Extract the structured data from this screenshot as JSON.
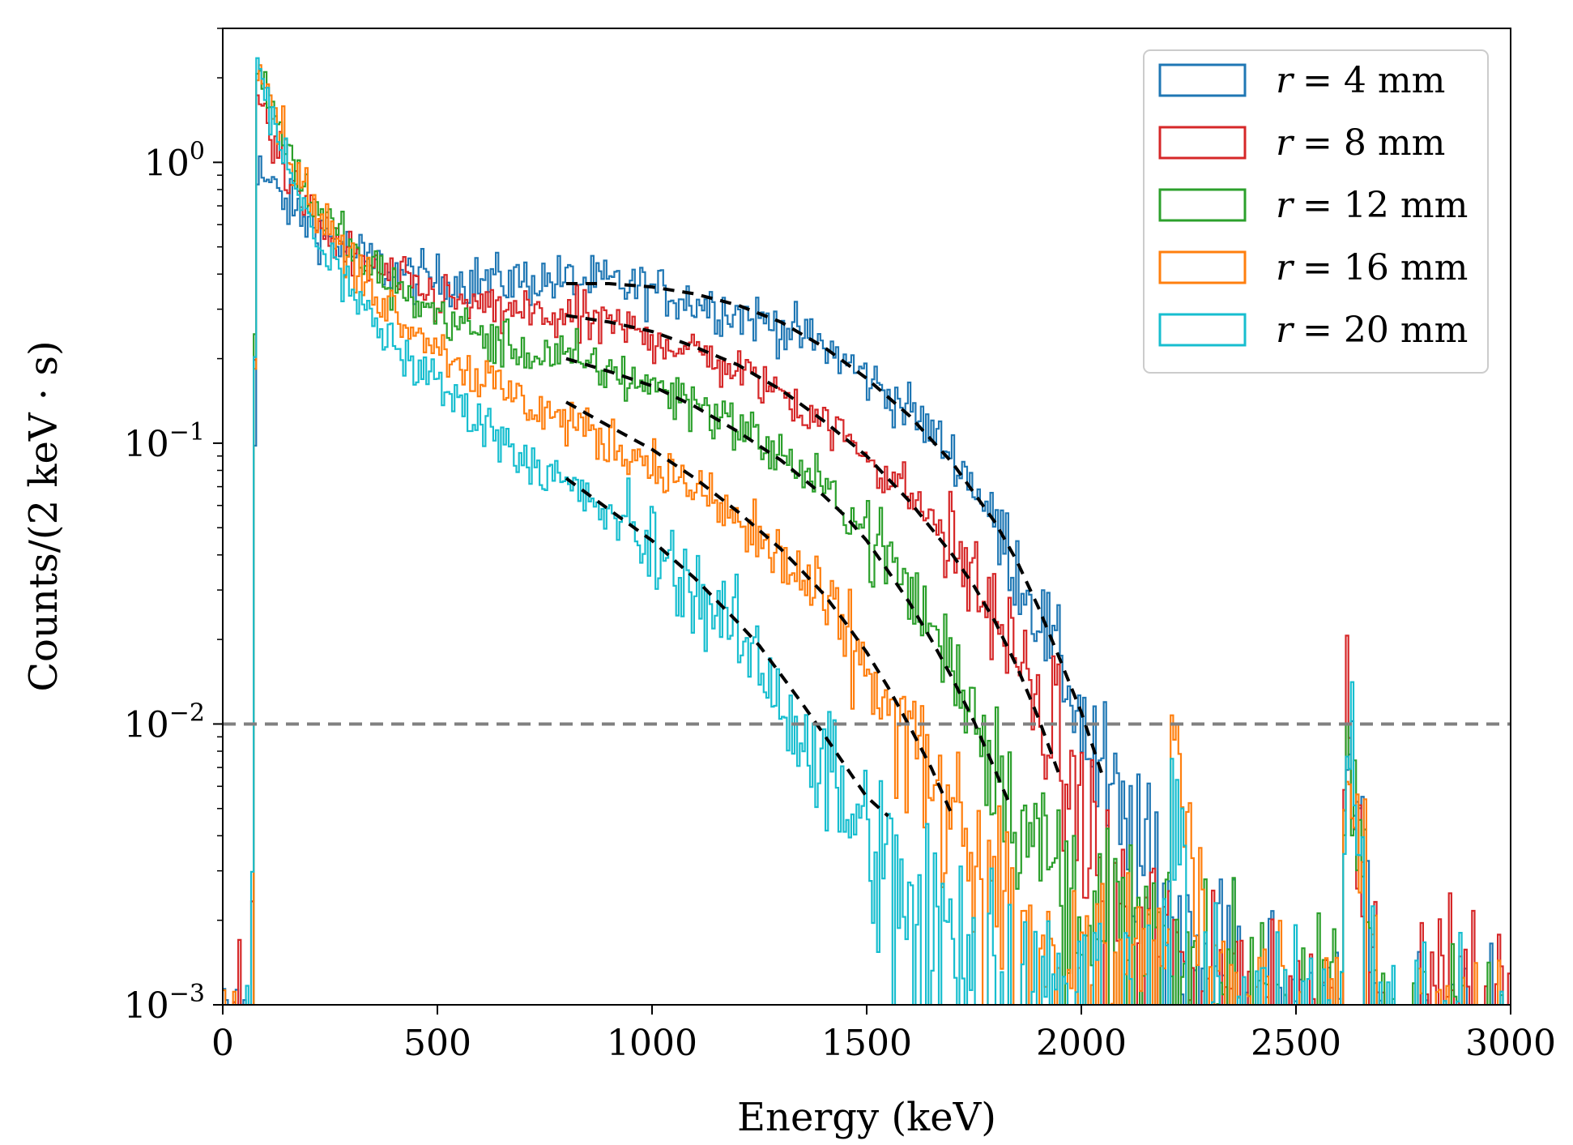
{
  "chart_data": {
    "type": "line",
    "title": "",
    "xlabel": "Energy (keV)",
    "ylabel": "Counts/(2 keV · s)",
    "xlim": [
      0,
      3000
    ],
    "ylim": [
      0.001,
      3.0
    ],
    "yscale": "log",
    "grid": false,
    "legend_position": "top-right",
    "x_ticks": [
      {
        "value": 0,
        "label": "0"
      },
      {
        "value": 500,
        "label": "500"
      },
      {
        "value": 1000,
        "label": "1000"
      },
      {
        "value": 1500,
        "label": "1500"
      },
      {
        "value": 2000,
        "label": "2000"
      },
      {
        "value": 2500,
        "label": "2500"
      },
      {
        "value": 3000,
        "label": "3000"
      }
    ],
    "y_ticks": [
      {
        "value": 0.001,
        "base": "10",
        "exp": "−3"
      },
      {
        "value": 0.01,
        "base": "10",
        "exp": "−2"
      },
      {
        "value": 0.1,
        "base": "10",
        "exp": "−1"
      },
      {
        "value": 1,
        "base": "10",
        "exp": "0"
      }
    ],
    "threshold": {
      "value": 0.01,
      "color": "#808080",
      "style": "dashed"
    },
    "series": [
      {
        "name": "r = 4 mm",
        "r_label": "r",
        "eq_label": "= 4 mm",
        "color": "#1f77b4",
        "x": [
          50,
          65,
          75,
          100,
          150,
          200,
          300,
          400,
          500,
          600,
          700,
          800,
          900,
          1000,
          1100,
          1200,
          1300,
          1400,
          1500,
          1600,
          1700,
          1750,
          1800,
          1850,
          1900,
          1950,
          2000,
          2050,
          2100,
          2150,
          2200,
          2300,
          2400,
          2500,
          2600,
          2615,
          2700,
          2800,
          3000
        ],
        "y": [
          0.0008,
          0.0008,
          0.98,
          0.85,
          0.7,
          0.6,
          0.48,
          0.4,
          0.38,
          0.38,
          0.38,
          0.38,
          0.37,
          0.35,
          0.32,
          0.29,
          0.26,
          0.22,
          0.17,
          0.13,
          0.09,
          0.07,
          0.05,
          0.035,
          0.024,
          0.016,
          0.01,
          0.006,
          0.004,
          0.003,
          0.0025,
          0.0018,
          0.0013,
          0.001,
          0.0009,
          0.0095,
          0.0008,
          0.0008,
          0.0008
        ]
      },
      {
        "name": "r = 8 mm",
        "r_label": "r",
        "eq_label": "= 8 mm",
        "color": "#d62728",
        "x": [
          50,
          65,
          75,
          100,
          150,
          200,
          300,
          400,
          500,
          600,
          700,
          800,
          900,
          1000,
          1100,
          1200,
          1300,
          1400,
          1500,
          1600,
          1650,
          1700,
          1750,
          1800,
          1850,
          1900,
          1950,
          2000,
          2050,
          2100,
          2200,
          2300,
          2400,
          2500,
          2600,
          2615,
          2700,
          3000
        ],
        "y": [
          0.0008,
          0.0008,
          1.8,
          1.4,
          0.9,
          0.65,
          0.45,
          0.38,
          0.33,
          0.3,
          0.29,
          0.28,
          0.26,
          0.24,
          0.21,
          0.18,
          0.15,
          0.12,
          0.09,
          0.065,
          0.053,
          0.042,
          0.032,
          0.024,
          0.017,
          0.011,
          0.007,
          0.0045,
          0.003,
          0.0022,
          0.0018,
          0.0015,
          0.0012,
          0.001,
          0.0009,
          0.009,
          0.0008,
          0.0016
        ]
      },
      {
        "name": "r = 12 mm",
        "r_label": "r",
        "eq_label": "= 12 mm",
        "color": "#2ca02c",
        "x": [
          50,
          65,
          75,
          100,
          150,
          200,
          300,
          400,
          500,
          600,
          700,
          800,
          900,
          1000,
          1100,
          1200,
          1300,
          1400,
          1450,
          1500,
          1550,
          1600,
          1650,
          1700,
          1750,
          1800,
          1850,
          1900,
          2000,
          2100,
          2200,
          2300,
          2400,
          2500,
          2600,
          2615,
          2700,
          3000
        ],
        "y": [
          0.0008,
          0.0008,
          2.5,
          1.8,
          1.1,
          0.75,
          0.47,
          0.35,
          0.29,
          0.24,
          0.21,
          0.2,
          0.18,
          0.16,
          0.14,
          0.115,
          0.09,
          0.068,
          0.058,
          0.048,
          0.038,
          0.029,
          0.022,
          0.016,
          0.011,
          0.0075,
          0.005,
          0.0035,
          0.0025,
          0.002,
          0.0017,
          0.0014,
          0.0012,
          0.001,
          0.0009,
          0.0085,
          0.0008,
          0.0008
        ]
      },
      {
        "name": "r = 16 mm",
        "r_label": "r",
        "eq_label": "= 16 mm",
        "color": "#ff7f0e",
        "x": [
          50,
          65,
          75,
          100,
          150,
          200,
          300,
          400,
          500,
          600,
          700,
          800,
          900,
          1000,
          1100,
          1200,
          1300,
          1350,
          1400,
          1450,
          1500,
          1550,
          1600,
          1650,
          1700,
          1750,
          1800,
          1900,
          2000,
          2100,
          2200,
          2205,
          2300,
          2400,
          2500,
          2600,
          2615,
          2700,
          3000
        ],
        "y": [
          0.0008,
          0.0008,
          2.5,
          1.9,
          1.1,
          0.75,
          0.42,
          0.3,
          0.22,
          0.17,
          0.14,
          0.12,
          0.1,
          0.085,
          0.068,
          0.052,
          0.038,
          0.032,
          0.026,
          0.02,
          0.015,
          0.011,
          0.008,
          0.0058,
          0.0042,
          0.0032,
          0.0026,
          0.002,
          0.0017,
          0.0015,
          0.0014,
          0.0098,
          0.0013,
          0.0012,
          0.001,
          0.0009,
          0.009,
          0.0008,
          0.0008
        ]
      },
      {
        "name": "r = 20 mm",
        "r_label": "r",
        "eq_label": "= 20 mm",
        "color": "#17becf",
        "x": [
          50,
          65,
          75,
          100,
          150,
          200,
          300,
          400,
          500,
          600,
          700,
          800,
          900,
          1000,
          1100,
          1200,
          1250,
          1300,
          1350,
          1400,
          1450,
          1500,
          1550,
          1600,
          1700,
          1800,
          1900,
          2000,
          2100,
          2200,
          2205,
          2300,
          2400,
          2500,
          2600,
          2615,
          2700,
          3000
        ],
        "y": [
          0.0008,
          0.0008,
          2.4,
          1.7,
          0.95,
          0.6,
          0.33,
          0.22,
          0.16,
          0.12,
          0.09,
          0.07,
          0.055,
          0.042,
          0.03,
          0.02,
          0.016,
          0.012,
          0.009,
          0.0068,
          0.005,
          0.0038,
          0.003,
          0.0025,
          0.002,
          0.0017,
          0.0015,
          0.0013,
          0.0012,
          0.0011,
          0.0055,
          0.001,
          0.001,
          0.0009,
          0.0009,
          0.0105,
          0.0008,
          0.0008
        ]
      }
    ],
    "fits": [
      {
        "name": "fit r = 4 mm",
        "x": [
          800,
          900,
          1000,
          1100,
          1200,
          1300,
          1400,
          1500,
          1600,
          1700,
          1800,
          1850,
          1900,
          1950,
          2000,
          2050
        ],
        "y": [
          0.37,
          0.37,
          0.36,
          0.34,
          0.31,
          0.27,
          0.22,
          0.17,
          0.125,
          0.085,
          0.052,
          0.038,
          0.026,
          0.017,
          0.011,
          0.0065
        ]
      },
      {
        "name": "fit r = 8 mm",
        "x": [
          800,
          900,
          1000,
          1100,
          1200,
          1300,
          1400,
          1500,
          1600,
          1700,
          1750,
          1800,
          1850,
          1900,
          1950
        ],
        "y": [
          0.285,
          0.27,
          0.25,
          0.22,
          0.19,
          0.155,
          0.12,
          0.09,
          0.062,
          0.04,
          0.031,
          0.023,
          0.016,
          0.0105,
          0.0065
        ]
      },
      {
        "name": "fit r = 12 mm",
        "x": [
          800,
          900,
          1000,
          1100,
          1200,
          1300,
          1400,
          1450,
          1500,
          1550,
          1600,
          1650,
          1700,
          1750,
          1800,
          1830
        ],
        "y": [
          0.2,
          0.18,
          0.16,
          0.135,
          0.11,
          0.087,
          0.065,
          0.055,
          0.045,
          0.035,
          0.027,
          0.02,
          0.0145,
          0.0102,
          0.0068,
          0.0053
        ]
      },
      {
        "name": "fit r = 16 mm",
        "x": [
          800,
          900,
          1000,
          1100,
          1200,
          1300,
          1350,
          1400,
          1450,
          1500,
          1550,
          1600,
          1650,
          1700
        ],
        "y": [
          0.14,
          0.115,
          0.095,
          0.075,
          0.057,
          0.042,
          0.035,
          0.029,
          0.023,
          0.018,
          0.0135,
          0.0098,
          0.007,
          0.0047
        ]
      },
      {
        "name": "fit r = 20 mm",
        "x": [
          800,
          900,
          1000,
          1100,
          1200,
          1250,
          1300,
          1350,
          1400,
          1450,
          1500,
          1550
        ],
        "y": [
          0.075,
          0.058,
          0.045,
          0.033,
          0.023,
          0.019,
          0.015,
          0.0118,
          0.0092,
          0.0071,
          0.0055,
          0.0047
        ]
      }
    ]
  }
}
